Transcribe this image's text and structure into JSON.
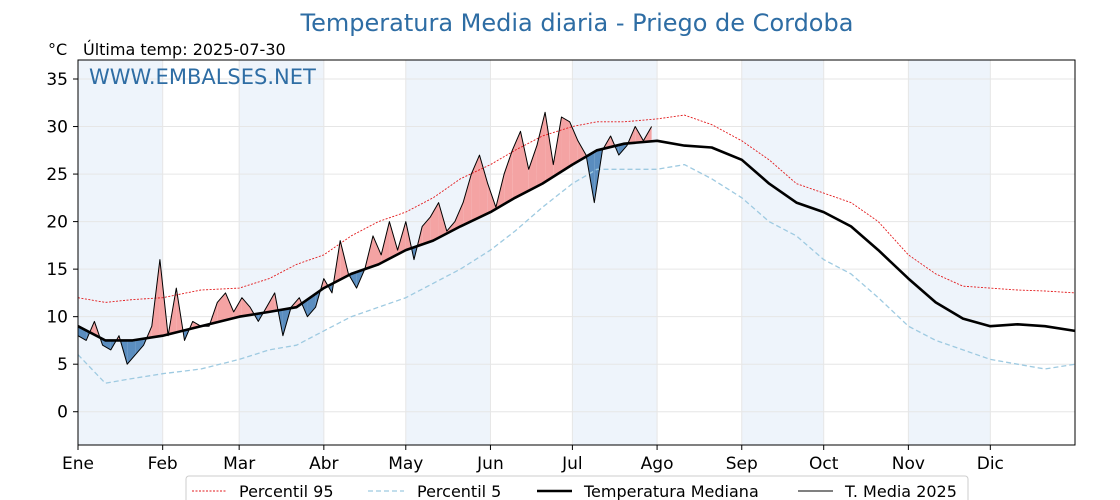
{
  "chart_data": {
    "type": "line",
    "title": "Temperatura Media diaria - Priego de Cordoba",
    "unit_label": "°C",
    "last_temp_label": "Última temp: 2025-07-30",
    "watermark": "WWW.EMBALSES.NET",
    "ylim": [
      -3.5,
      37
    ],
    "yticks": [
      0,
      5,
      10,
      15,
      20,
      25,
      30,
      35
    ],
    "xlim": [
      0,
      365
    ],
    "month_labels": [
      "Ene",
      "Feb",
      "Mar",
      "Abr",
      "May",
      "Jun",
      "Jul",
      "Ago",
      "Sep",
      "Oct",
      "Nov",
      "Dic"
    ],
    "month_starts": [
      0,
      31,
      59,
      90,
      120,
      151,
      181,
      212,
      243,
      273,
      304,
      334
    ],
    "grid": true,
    "legend_position": "bottom-center",
    "colors": {
      "p95": "#e31a1c",
      "p5": "#9ecae1",
      "median": "#000000",
      "current": "#000000",
      "above_fill": "#f4a3a3",
      "below_fill": "#5a8dbf",
      "shade": "#eef4fb",
      "title": "#2e6da4"
    },
    "series": [
      {
        "name": "Percentil 95",
        "key": "p95",
        "x": [
          0,
          10,
          20,
          31,
          45,
          59,
          70,
          80,
          90,
          100,
          110,
          120,
          130,
          140,
          151,
          160,
          170,
          181,
          190,
          200,
          212,
          222,
          232,
          243,
          253,
          263,
          273,
          283,
          293,
          304,
          314,
          324,
          334,
          344,
          354,
          365
        ],
        "values": [
          12,
          11.5,
          11.8,
          12,
          12.8,
          13,
          14,
          15.5,
          16.5,
          18.5,
          20,
          21,
          22.5,
          24.5,
          26,
          27.5,
          29,
          30,
          30.5,
          30.5,
          30.8,
          31.2,
          30.2,
          28.5,
          26.5,
          24,
          23,
          22,
          20,
          16.5,
          14.5,
          13.2,
          13,
          12.8,
          12.7,
          12.5
        ]
      },
      {
        "name": "Percentil 5",
        "key": "p5",
        "x": [
          0,
          10,
          20,
          31,
          45,
          59,
          70,
          80,
          90,
          100,
          110,
          120,
          130,
          140,
          151,
          160,
          170,
          181,
          190,
          200,
          212,
          222,
          232,
          243,
          253,
          263,
          273,
          283,
          293,
          304,
          314,
          324,
          334,
          344,
          354,
          365
        ],
        "values": [
          6,
          3,
          3.5,
          4,
          4.5,
          5.5,
          6.5,
          7,
          8.5,
          10,
          11,
          12,
          13.5,
          15,
          17,
          19,
          21.5,
          24,
          25.5,
          25.5,
          25.5,
          26,
          24.5,
          22.5,
          20,
          18.5,
          16,
          14.5,
          12,
          9,
          7.5,
          6.5,
          5.5,
          5,
          4.5,
          5
        ]
      },
      {
        "name": "Temperatura Mediana",
        "key": "median",
        "x": [
          0,
          10,
          20,
          31,
          45,
          59,
          70,
          80,
          90,
          100,
          110,
          120,
          130,
          140,
          151,
          160,
          170,
          181,
          190,
          200,
          212,
          222,
          232,
          243,
          253,
          263,
          273,
          283,
          293,
          304,
          314,
          324,
          334,
          344,
          354,
          365
        ],
        "values": [
          9,
          7.5,
          7.5,
          8,
          9,
          10,
          10.5,
          11,
          13,
          14.5,
          15.5,
          17,
          18,
          19.5,
          21,
          22.5,
          24,
          26,
          27.5,
          28.2,
          28.5,
          28,
          27.8,
          26.5,
          24,
          22,
          21,
          19.5,
          17,
          14,
          11.5,
          9.8,
          9,
          9.2,
          9,
          8.5
        ]
      },
      {
        "name": "T. Media 2025",
        "key": "current",
        "x": [
          0,
          3,
          6,
          9,
          12,
          15,
          18,
          21,
          24,
          27,
          30,
          33,
          36,
          39,
          42,
          45,
          48,
          51,
          54,
          57,
          60,
          63,
          66,
          69,
          72,
          75,
          78,
          81,
          84,
          87,
          90,
          93,
          96,
          99,
          102,
          105,
          108,
          111,
          114,
          117,
          120,
          123,
          126,
          129,
          132,
          135,
          138,
          141,
          144,
          147,
          150,
          153,
          156,
          159,
          162,
          165,
          168,
          171,
          174,
          177,
          180,
          183,
          186,
          189,
          192,
          195,
          198,
          201,
          204,
          207,
          210
        ],
        "values": [
          8,
          7.5,
          9.5,
          7,
          6.5,
          8,
          5,
          6,
          7,
          9,
          16,
          8,
          13,
          7.5,
          9.5,
          9,
          9,
          11.5,
          12.5,
          10.5,
          12,
          11,
          9.5,
          11,
          12.5,
          8,
          11,
          12,
          10,
          11,
          14,
          12.5,
          18,
          14.5,
          13,
          15,
          18.5,
          16.5,
          20,
          17,
          20,
          16,
          19.5,
          20.5,
          22,
          19,
          20,
          22,
          25,
          27,
          24,
          21.5,
          25,
          27.5,
          29.5,
          25.5,
          28,
          31.5,
          26,
          31,
          30.5,
          28.5,
          27,
          22,
          27.5,
          29,
          27,
          28,
          30,
          28.5,
          30
        ]
      }
    ]
  }
}
